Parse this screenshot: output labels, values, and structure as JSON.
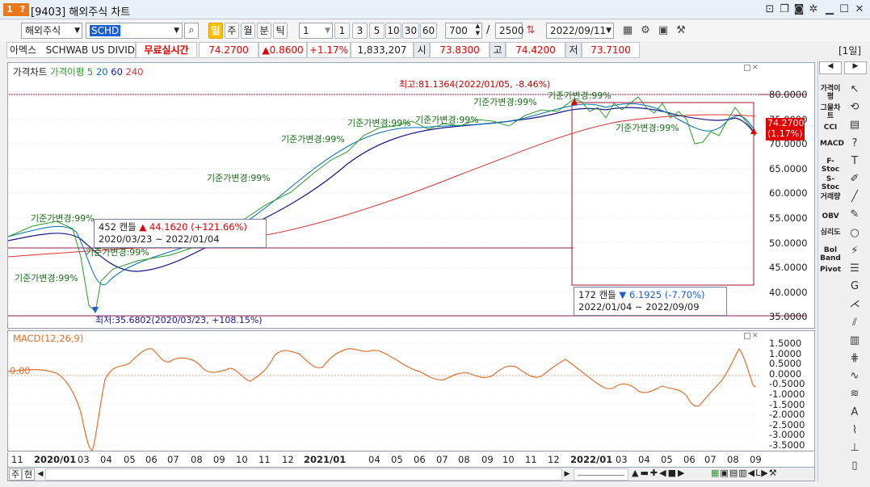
{
  "window": {
    "title": "[9403] 해외주식 차트",
    "badge_number": "1",
    "badge_help": "?"
  },
  "toolbar": {
    "market_select": "해외주식",
    "symbol_input": "SCHD",
    "periods": [
      "일",
      "주",
      "월",
      "분",
      "틱"
    ],
    "active_period": "일",
    "interval_value": "1",
    "quick_intervals": [
      "1",
      "3",
      "5",
      "10",
      "30",
      "60"
    ],
    "count_value": "700",
    "separator": "/",
    "total_value": "2500",
    "date_value": "2022/09/11"
  },
  "quote": {
    "exchange": "아멕스",
    "name": "SCHWAB US DIVIDE",
    "realtime_label": "무료실시간",
    "price": "74.2700",
    "change": "▲0.8600",
    "change_pct": "+1.17%",
    "volume": "1,833,207",
    "open_label": "시",
    "open": "73.8300",
    "high_label": "고",
    "high": "74.4200",
    "low_label": "저",
    "low": "73.7100",
    "period_label": "[1일]"
  },
  "price_chart": {
    "legend": {
      "title": "가격차트",
      "ma_label": "가격이평",
      "ma_values": [
        "5",
        "20",
        "60",
        "240"
      ],
      "ma_colors": [
        "#2e9a2e",
        "#0070c0",
        "#1a1a8c",
        "#e03030"
      ]
    },
    "y_ticks": [
      "80.0000",
      "75.0000",
      "70.0000",
      "65.0000",
      "60.0000",
      "55.0000",
      "50.0000",
      "45.0000",
      "40.0000",
      "35.0000"
    ],
    "current_price_tag": "74.2700",
    "current_pct_tag": "(1.17%)",
    "high_annotation": "최고:81.1364(2022/01/05, -8.46%)",
    "low_annotation": "최저:35.6802(2020/03/23, +108.15%)",
    "base_labels": [
      "기준가변경:99%",
      "기준가변경:99%",
      "기준가변경:99%",
      "기준가변경:99%",
      "기준가변경:99%",
      "기준가변경:99%",
      "기준가변경:99%",
      "기준가변경:99%",
      "기준가변경:99%",
      "기준가변경:99%"
    ],
    "range1": {
      "candles": "452 캔들",
      "value": "44.1620 (+121.66%)",
      "dates": "2020/03/23 ~ 2022/01/04"
    },
    "range2": {
      "candles": "172 캔들",
      "value": "6.1925 (-7.70%)",
      "dates": "2022/01/04 ~ 2022/09/09"
    }
  },
  "macd_chart": {
    "legend": "MACD(12,26,9)",
    "zero_label": "0.00",
    "y_ticks": [
      "1.5000",
      "1.0000",
      "0.5000",
      "0.0000",
      "-0.5000",
      "-1.0000",
      "-1.5000",
      "-2.0000",
      "-2.5000",
      "-3.0000",
      "-3.5000"
    ]
  },
  "x_axis": {
    "labels": [
      "11",
      "2020/01",
      "03",
      "04",
      "05",
      "06",
      "07",
      "08",
      "09",
      "10",
      "11",
      "12",
      "2021/01",
      "04",
      "05",
      "06",
      "07",
      "08",
      "09",
      "10",
      "11",
      "12",
      "2022/01",
      "03",
      "04",
      "05",
      "06",
      "07",
      "08",
      "09"
    ]
  },
  "bottom_bar": {
    "mode_week": "주",
    "mode_current": "현"
  },
  "right_panel": {
    "indicators": [
      "가격이평",
      "그물차트",
      "CCI",
      "MACD",
      "F-Stoc",
      "S-Stoc",
      "거래량",
      "OBV",
      "심리도",
      "Bol Band",
      "Pivot"
    ]
  }
}
